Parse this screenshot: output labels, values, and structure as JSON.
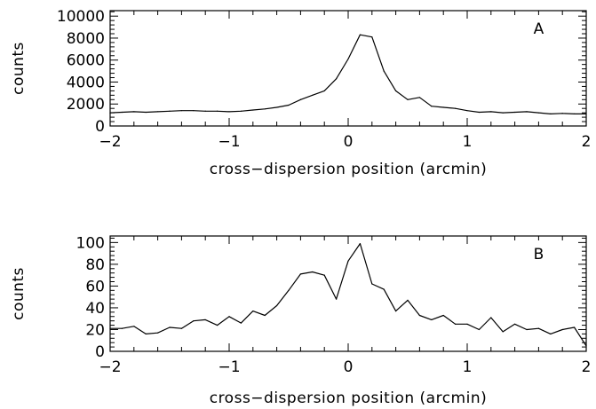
{
  "chart_data": [
    {
      "type": "line",
      "panel_label": "A",
      "xlabel": "cross−dispersion position (arcmin)",
      "ylabel": "counts",
      "xlim": [
        -2,
        2
      ],
      "ylim": [
        0,
        10500
      ],
      "xticks": [
        -2,
        -1,
        0,
        1,
        2
      ],
      "xtick_labels": [
        "−2",
        "−1",
        "0",
        "1",
        "2"
      ],
      "yticks": [
        0,
        2000,
        4000,
        6000,
        8000,
        10000
      ],
      "ytick_labels": [
        "0",
        "2000",
        "4000",
        "6000",
        "8000",
        "10000"
      ],
      "x": [
        -2.0,
        -1.9,
        -1.8,
        -1.7,
        -1.6,
        -1.5,
        -1.4,
        -1.3,
        -1.2,
        -1.1,
        -1.0,
        -0.9,
        -0.8,
        -0.7,
        -0.6,
        -0.5,
        -0.4,
        -0.3,
        -0.2,
        -0.1,
        0.0,
        0.1,
        0.2,
        0.3,
        0.4,
        0.5,
        0.6,
        0.7,
        0.8,
        0.9,
        1.0,
        1.1,
        1.2,
        1.3,
        1.4,
        1.5,
        1.6,
        1.7,
        1.8,
        1.9,
        2.0
      ],
      "y": [
        1200,
        1250,
        1300,
        1250,
        1300,
        1350,
        1400,
        1400,
        1350,
        1350,
        1300,
        1350,
        1450,
        1550,
        1700,
        1900,
        2400,
        2800,
        3200,
        4300,
        6100,
        8300,
        8100,
        5000,
        3200,
        2400,
        2600,
        1800,
        1700,
        1600,
        1400,
        1250,
        1300,
        1200,
        1250,
        1300,
        1200,
        1100,
        1150,
        1100,
        1100
      ],
      "grid": false
    },
    {
      "type": "line",
      "panel_label": "B",
      "xlabel": "cross−dispersion position (arcmin)",
      "ylabel": "counts",
      "xlim": [
        -2,
        2
      ],
      "ylim": [
        0,
        106
      ],
      "xticks": [
        -2,
        -1,
        0,
        1,
        2
      ],
      "xtick_labels": [
        "−2",
        "−1",
        "0",
        "1",
        "2"
      ],
      "yticks": [
        0,
        20,
        40,
        60,
        80,
        100
      ],
      "ytick_labels": [
        "0",
        "20",
        "40",
        "60",
        "80",
        "100"
      ],
      "x": [
        -2.0,
        -1.9,
        -1.8,
        -1.7,
        -1.6,
        -1.5,
        -1.4,
        -1.3,
        -1.2,
        -1.1,
        -1.0,
        -0.9,
        -0.8,
        -0.7,
        -0.6,
        -0.5,
        -0.4,
        -0.3,
        -0.2,
        -0.1,
        0.0,
        0.1,
        0.2,
        0.3,
        0.4,
        0.5,
        0.6,
        0.7,
        0.8,
        0.9,
        1.0,
        1.1,
        1.2,
        1.3,
        1.4,
        1.5,
        1.6,
        1.7,
        1.8,
        1.9,
        2.0
      ],
      "y": [
        21,
        21,
        23,
        16,
        17,
        22,
        21,
        28,
        29,
        24,
        32,
        26,
        37,
        33,
        42,
        56,
        71,
        73,
        70,
        48,
        83,
        99,
        62,
        57,
        37,
        47,
        33,
        29,
        33,
        25,
        25,
        20,
        31,
        18,
        25,
        20,
        21,
        16,
        20,
        22,
        5
      ],
      "grid": false
    }
  ]
}
